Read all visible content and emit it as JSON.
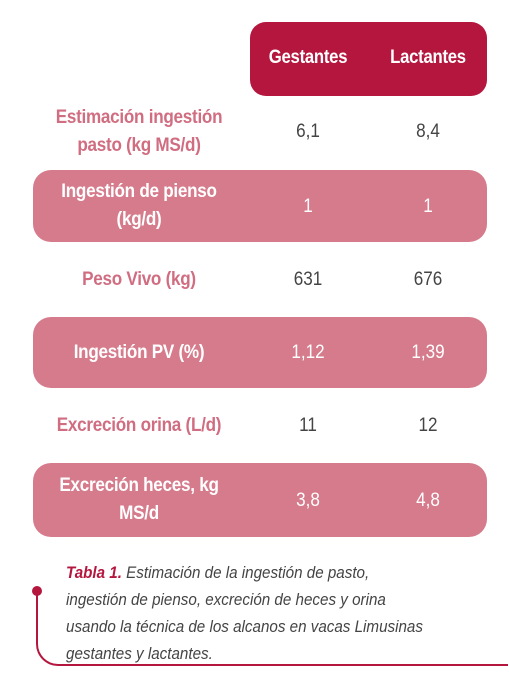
{
  "table": {
    "columns": [
      "Gestantes",
      "Lactantes"
    ],
    "rows": [
      {
        "label_line1": "Estimación ingestión",
        "label_line2": "pasto (kg MS/d)",
        "gestantes": "6,1",
        "lactantes": "8,4",
        "highlighted": false
      },
      {
        "label_line1": "Ingestión de pienso",
        "label_line2": "(kg/d)",
        "gestantes": "1",
        "lactantes": "1",
        "highlighted": true
      },
      {
        "label_line1": "Peso Vivo (kg)",
        "label_line2": "",
        "gestantes": "631",
        "lactantes": "676",
        "highlighted": false
      },
      {
        "label_line1": "Ingestión PV (%)",
        "label_line2": "",
        "gestantes": "1,12",
        "lactantes": "1,39",
        "highlighted": true
      },
      {
        "label_line1": "Excreción orina (L/d)",
        "label_line2": "",
        "gestantes": "11",
        "lactantes": "12",
        "highlighted": false
      },
      {
        "label_line1": "Excreción heces, kg",
        "label_line2": "MS/d",
        "gestantes": "3,8",
        "lactantes": "4,8",
        "highlighted": true
      }
    ]
  },
  "caption": {
    "label": "Tabla 1.",
    "text": " Estimación de la ingestión de pasto, ingestión de pienso, excreción de heces y orina usando la técnica de los alcanos en vacas Limusinas gestantes y lactantes."
  },
  "colors": {
    "header_bg": "#b5163e",
    "band_bg": "#d67b8c",
    "plain_label": "#d06d81",
    "value_text": "#444444",
    "caption_accent": "#b5163e"
  }
}
